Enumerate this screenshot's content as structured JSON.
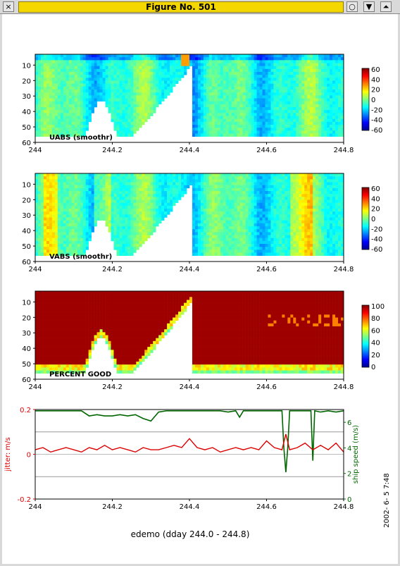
{
  "window": {
    "title": "Figure No. 501",
    "close_glyph": "×",
    "minimize_glyph": "○",
    "menu_glyph": "▼",
    "maximize_glyph": "⏶"
  },
  "chart_data": [
    {
      "type": "heatmap",
      "panel_label": "UABS  (smoothr)",
      "x_ticks": [
        "244",
        "244.2",
        "244.4",
        "244.6",
        "244.8"
      ],
      "y_ticks": [
        "10",
        "20",
        "30",
        "40",
        "50",
        "60"
      ],
      "colorbar_ticks": [
        "60",
        "40",
        "20",
        "0",
        "-20",
        "-40",
        "-60"
      ],
      "xlim": [
        244,
        244.8
      ],
      "ylim": [
        60,
        3
      ]
    },
    {
      "type": "heatmap",
      "panel_label": "VABS  (smoothr)",
      "x_ticks": [
        "244",
        "244.2",
        "244.4",
        "244.6",
        "244.8"
      ],
      "y_ticks": [
        "10",
        "20",
        "30",
        "40",
        "50",
        "60"
      ],
      "colorbar_ticks": [
        "60",
        "40",
        "20",
        "0",
        "-20",
        "-40",
        "-60"
      ],
      "xlim": [
        244,
        244.8
      ],
      "ylim": [
        60,
        3
      ]
    },
    {
      "type": "heatmap",
      "panel_label": "PERCENT GOOD",
      "x_ticks": [
        "244",
        "244.2",
        "244.4",
        "244.6",
        "244.8"
      ],
      "y_ticks": [
        "10",
        "20",
        "30",
        "40",
        "50",
        "60"
      ],
      "colorbar_ticks": [
        "100",
        "80",
        "60",
        "40",
        "20",
        "0"
      ],
      "xlim": [
        244,
        244.8
      ],
      "ylim": [
        60,
        3
      ]
    },
    {
      "type": "line",
      "x_ticks": [
        "244",
        "244.2",
        "244.4",
        "244.6",
        "244.8"
      ],
      "left_ticks": [
        "0.2",
        "0",
        "-0.2"
      ],
      "right_ticks": [
        "6",
        "4",
        "2",
        "0"
      ],
      "left_label": "jitter: m/s",
      "right_label": "ship speed (m/s)",
      "xlabel": "edemo (dday 244.0 - 244.8)",
      "timestamp": "2002- 6- 5  7:48",
      "left_ylim": [
        -0.2,
        0.2
      ],
      "right_ylim": [
        0,
        7
      ],
      "series": [
        {
          "color": "#dd0000",
          "x": [
            244.0,
            244.02,
            244.04,
            244.06,
            244.08,
            244.1,
            244.12,
            244.14,
            244.16,
            244.18,
            244.2,
            244.22,
            244.24,
            244.26,
            244.28,
            244.3,
            244.32,
            244.34,
            244.36,
            244.38,
            244.4,
            244.42,
            244.44,
            244.46,
            244.48,
            244.5,
            244.52,
            244.54,
            244.56,
            244.58,
            244.6,
            244.62,
            244.64,
            244.65,
            244.66,
            244.68,
            244.7,
            244.72,
            244.74,
            244.76,
            244.78,
            244.8
          ],
          "values": [
            0.02,
            0.03,
            0.01,
            0.02,
            0.03,
            0.02,
            0.01,
            0.03,
            0.02,
            0.04,
            0.02,
            0.03,
            0.02,
            0.01,
            0.03,
            0.02,
            0.02,
            0.03,
            0.04,
            0.03,
            0.07,
            0.03,
            0.02,
            0.03,
            0.01,
            0.02,
            0.03,
            0.02,
            0.03,
            0.02,
            0.06,
            0.03,
            0.02,
            0.09,
            0.02,
            0.03,
            0.05,
            0.02,
            0.04,
            0.02,
            0.05,
            0.01
          ]
        },
        {
          "color": "#006600",
          "x": [
            244.0,
            244.02,
            244.04,
            244.06,
            244.08,
            244.1,
            244.12,
            244.14,
            244.16,
            244.18,
            244.2,
            244.22,
            244.24,
            244.26,
            244.28,
            244.3,
            244.32,
            244.34,
            244.36,
            244.38,
            244.4,
            244.42,
            244.44,
            244.46,
            244.48,
            244.5,
            244.52,
            244.53,
            244.54,
            244.56,
            244.58,
            244.6,
            244.62,
            244.64,
            244.645,
            244.65,
            244.655,
            244.66,
            244.68,
            244.7,
            244.715,
            244.72,
            244.725,
            244.74,
            244.76,
            244.78,
            244.8
          ],
          "values": [
            6.9,
            6.9,
            6.9,
            6.9,
            6.9,
            6.9,
            6.9,
            6.5,
            6.6,
            6.5,
            6.5,
            6.6,
            6.5,
            6.6,
            6.3,
            6.1,
            6.8,
            6.9,
            6.9,
            6.9,
            6.9,
            6.9,
            6.9,
            6.9,
            6.9,
            6.8,
            6.9,
            6.4,
            6.9,
            6.9,
            6.9,
            6.9,
            6.9,
            6.9,
            4.0,
            2.1,
            4.0,
            6.9,
            6.9,
            6.9,
            6.9,
            3.0,
            6.9,
            6.8,
            6.9,
            6.8,
            6.9
          ]
        }
      ]
    }
  ]
}
